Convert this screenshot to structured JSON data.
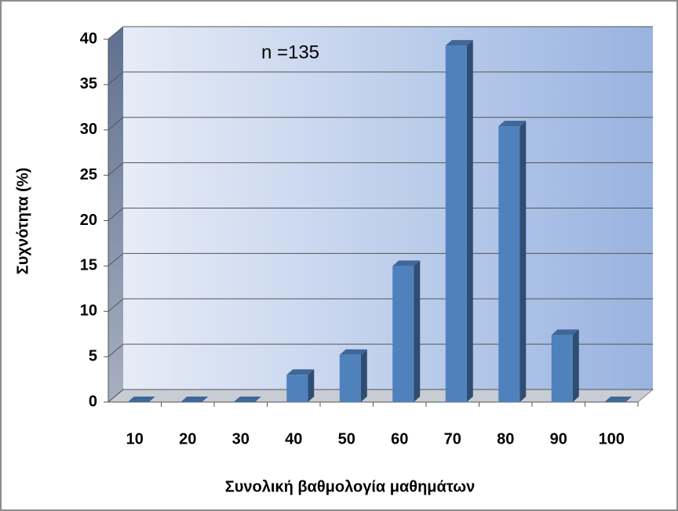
{
  "chart_data": {
    "type": "bar3d",
    "annotation": "n =135",
    "x_label": "Συνολική βαθμολογία μαθημάτων",
    "y_label": "Συχνότητα (%)",
    "categories": [
      "10",
      "20",
      "30",
      "40",
      "50",
      "60",
      "70",
      "80",
      "90",
      "100"
    ],
    "values": [
      0,
      0,
      0,
      3,
      5.2,
      15,
      39.3,
      30.4,
      7.4,
      0
    ],
    "color": "#4f81bd",
    "ylim": [
      0,
      40
    ],
    "yticks": [
      0,
      5,
      10,
      15,
      20,
      25,
      30,
      35,
      40
    ],
    "grid": true
  }
}
